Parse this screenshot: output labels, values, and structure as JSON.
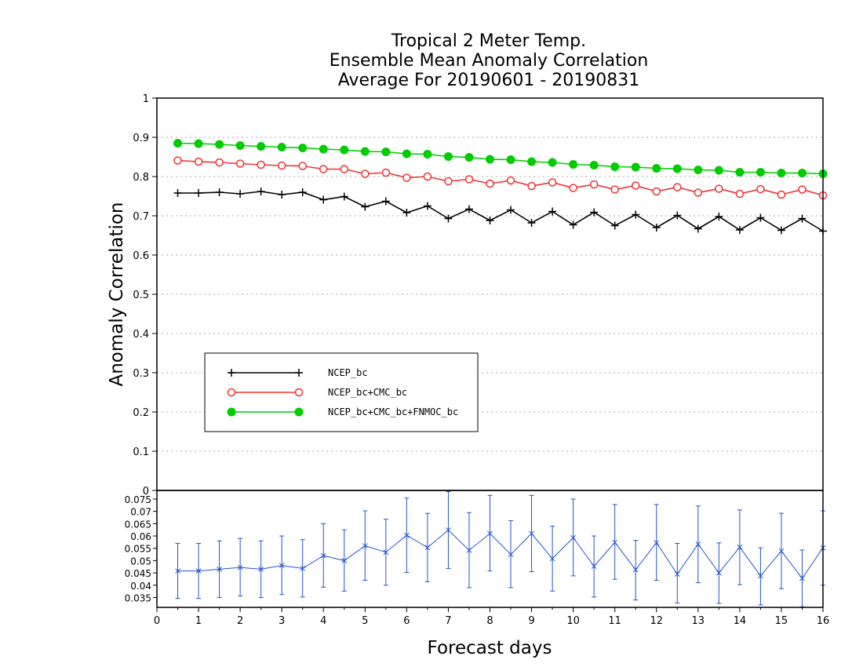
{
  "chart_data": [
    {
      "type": "line",
      "title": "Tropical 2 Meter Temp.",
      "subtitle_lines": [
        "Ensemble Mean Anomaly Correlation",
        "Average For 20190601 - 20190831"
      ],
      "ylabel": "Anomaly Correlation",
      "ylim": [
        0,
        1
      ],
      "yticks": [
        0,
        0.1,
        0.2,
        0.3,
        0.4,
        0.5,
        0.6,
        0.7,
        0.8,
        0.9,
        1
      ],
      "ytick_labels": [
        "0",
        "0.1",
        "0.2",
        "0.3",
        "0.4",
        "0.5",
        "0.6",
        "0.7",
        "0.8",
        "0.9",
        "1"
      ],
      "xlim": [
        0,
        16
      ],
      "grid": true,
      "legend_position": "lower-left",
      "x": [
        0.5,
        1,
        1.5,
        2,
        2.5,
        3,
        3.5,
        4,
        4.5,
        5,
        5.5,
        6,
        6.5,
        7,
        7.5,
        8,
        8.5,
        9,
        9.5,
        10,
        10.5,
        11,
        11.5,
        12,
        12.5,
        13,
        13.5,
        14,
        14.5,
        15,
        15.5,
        16
      ],
      "series": [
        {
          "name": "NCEP_bc",
          "color": "#000000",
          "marker": "plus",
          "values": [
            0.758,
            0.758,
            0.76,
            0.756,
            0.762,
            0.754,
            0.76,
            0.741,
            0.749,
            0.723,
            0.737,
            0.708,
            0.725,
            0.693,
            0.717,
            0.688,
            0.715,
            0.682,
            0.711,
            0.677,
            0.709,
            0.675,
            0.703,
            0.67,
            0.701,
            0.667,
            0.698,
            0.664,
            0.695,
            0.663,
            0.693,
            0.661
          ]
        },
        {
          "name": "NCEP_bc+CMC_bc",
          "color": "#ee3333",
          "marker": "open-circle",
          "values": [
            0.841,
            0.838,
            0.836,
            0.833,
            0.83,
            0.828,
            0.827,
            0.819,
            0.819,
            0.807,
            0.81,
            0.797,
            0.8,
            0.788,
            0.793,
            0.782,
            0.79,
            0.776,
            0.785,
            0.771,
            0.78,
            0.767,
            0.777,
            0.762,
            0.773,
            0.759,
            0.769,
            0.756,
            0.768,
            0.754,
            0.767,
            0.752
          ]
        },
        {
          "name": "NCEP_bc+CMC_bc+FNMOC_bc",
          "color": "#00cc00",
          "marker": "filled-circle",
          "values": [
            0.885,
            0.884,
            0.882,
            0.879,
            0.877,
            0.875,
            0.873,
            0.87,
            0.868,
            0.864,
            0.863,
            0.858,
            0.857,
            0.851,
            0.849,
            0.844,
            0.843,
            0.838,
            0.836,
            0.831,
            0.829,
            0.825,
            0.824,
            0.821,
            0.82,
            0.817,
            0.816,
            0.811,
            0.811,
            0.809,
            0.809,
            0.807
          ]
        }
      ]
    },
    {
      "type": "line",
      "subtype": "errorbar",
      "xlabel": "Forecast days",
      "xlim": [
        0,
        16
      ],
      "xticks": [
        0,
        1,
        2,
        3,
        4,
        5,
        6,
        7,
        8,
        9,
        10,
        11,
        12,
        13,
        14,
        15,
        16
      ],
      "xtick_labels": [
        "0",
        "1",
        "2",
        "3",
        "4",
        "5",
        "6",
        "7",
        "8",
        "9",
        "10",
        "11",
        "12",
        "13",
        "14",
        "15",
        "16"
      ],
      "ylim": [
        0.031,
        0.0785
      ],
      "yticks": [
        0.035,
        0.04,
        0.045,
        0.05,
        0.055,
        0.06,
        0.065,
        0.07,
        0.075
      ],
      "ytick_labels": [
        "0.035",
        "0.04",
        "0.045",
        "0.05",
        "0.055",
        "0.06",
        "0.065",
        "0.07",
        "0.075"
      ],
      "top_tick_label": "0",
      "series": [
        {
          "color": "#2255cc",
          "x": [
            0.5,
            1,
            1.5,
            2,
            2.5,
            3,
            3.5,
            4,
            4.5,
            5,
            5.5,
            6,
            6.5,
            7,
            7.5,
            8,
            8.5,
            9,
            9.5,
            10,
            10.5,
            11,
            11.5,
            12,
            12.5,
            13,
            13.5,
            14,
            14.5,
            15,
            15.5,
            16
          ],
          "values": [
            0.0458,
            0.0458,
            0.0465,
            0.0472,
            0.0465,
            0.048,
            0.0468,
            0.052,
            0.05,
            0.056,
            0.0534,
            0.0603,
            0.0553,
            0.0624,
            0.0542,
            0.061,
            0.0525,
            0.061,
            0.0508,
            0.0593,
            0.0477,
            0.0574,
            0.0463,
            0.0573,
            0.0445,
            0.0567,
            0.045,
            0.0555,
            0.0438,
            0.0539,
            0.0428,
            0.0552
          ],
          "upper": [
            0.057,
            0.057,
            0.058,
            0.059,
            0.058,
            0.06,
            0.0585,
            0.065,
            0.0625,
            0.0702,
            0.0668,
            0.0754,
            0.0692,
            0.078,
            0.0695,
            0.0765,
            0.0662,
            0.0765,
            0.064,
            0.075,
            0.06,
            0.0728,
            0.0582,
            0.0728,
            0.057,
            0.0722,
            0.0572,
            0.0706,
            0.0552,
            0.0692,
            0.0543,
            0.0702
          ],
          "lower": [
            0.0346,
            0.0346,
            0.035,
            0.0356,
            0.035,
            0.0362,
            0.0352,
            0.0392,
            0.0376,
            0.042,
            0.04,
            0.0452,
            0.0414,
            0.0468,
            0.039,
            0.0458,
            0.039,
            0.0455,
            0.0376,
            0.0438,
            0.0352,
            0.0424,
            0.034,
            0.042,
            0.0328,
            0.041,
            0.0326,
            0.0402,
            0.032,
            0.0386,
            0.0312,
            0.04
          ]
        }
      ]
    }
  ]
}
